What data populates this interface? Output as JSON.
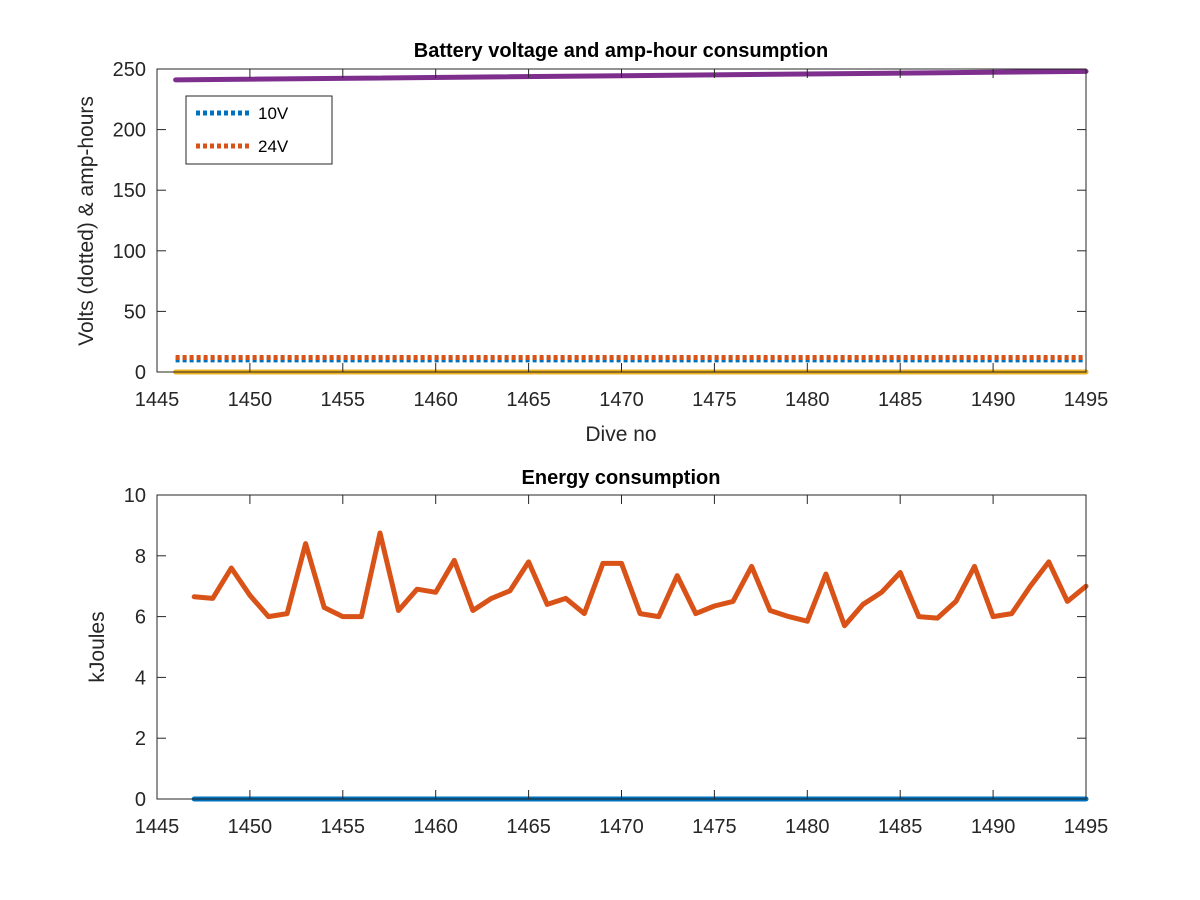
{
  "chart_data": [
    {
      "type": "line",
      "title": "Battery voltage and amp-hour consumption",
      "xlabel": "Dive no",
      "ylabel": "Volts (dotted) & amp-hours",
      "xlim": [
        1445,
        1495
      ],
      "ylim": [
        0,
        250
      ],
      "xticks": [
        1445,
        1450,
        1455,
        1460,
        1465,
        1470,
        1475,
        1480,
        1485,
        1490,
        1495
      ],
      "yticks": [
        0,
        50,
        100,
        150,
        200,
        250
      ],
      "grid": false,
      "legend": {
        "placement": "top-left",
        "entries": [
          "10V",
          "24V"
        ]
      },
      "series": [
        {
          "name": "10V",
          "style": "dotted",
          "color": "#0072BD",
          "x": [
            1446,
            1495
          ],
          "values": [
            10,
            10
          ]
        },
        {
          "name": "24V",
          "style": "dotted",
          "color": "#D95319",
          "x": [
            1446,
            1495
          ],
          "values": [
            12,
            12
          ]
        },
        {
          "style": "solid",
          "color": "#EDB120",
          "x": [
            1446,
            1495
          ],
          "values": [
            0,
            0
          ]
        },
        {
          "style": "solid",
          "color": "#7E2F8E",
          "x": [
            1446,
            1495
          ],
          "values": [
            241,
            248
          ]
        }
      ]
    },
    {
      "type": "line",
      "title": "Energy consumption",
      "xlabel": "",
      "ylabel": "kJoules",
      "xlim": [
        1445,
        1495
      ],
      "ylim": [
        0,
        10
      ],
      "xticks": [
        1445,
        1450,
        1455,
        1460,
        1465,
        1470,
        1475,
        1480,
        1485,
        1490,
        1495
      ],
      "yticks": [
        0,
        2,
        4,
        6,
        8,
        10
      ],
      "grid": false,
      "series": [
        {
          "style": "solid",
          "color": "#0072BD",
          "x": [
            1447,
            1495
          ],
          "values": [
            0,
            0
          ]
        },
        {
          "style": "solid",
          "color": "#D95319",
          "x": [
            1447,
            1448,
            1449,
            1450,
            1451,
            1452,
            1453,
            1454,
            1455,
            1456,
            1457,
            1458,
            1459,
            1460,
            1461,
            1462,
            1463,
            1464,
            1465,
            1466,
            1467,
            1468,
            1469,
            1470,
            1471,
            1472,
            1473,
            1474,
            1475,
            1476,
            1477,
            1478,
            1479,
            1480,
            1481,
            1482,
            1483,
            1484,
            1485,
            1486,
            1487,
            1488,
            1489,
            1490,
            1491,
            1492,
            1493,
            1494,
            1495
          ],
          "values": [
            6.65,
            6.6,
            7.6,
            6.7,
            6.0,
            6.1,
            8.4,
            6.3,
            6.0,
            6.0,
            8.75,
            6.2,
            6.9,
            6.8,
            7.85,
            6.2,
            6.6,
            6.85,
            7.8,
            6.4,
            6.6,
            6.1,
            7.75,
            7.75,
            6.1,
            6.0,
            7.35,
            6.1,
            6.35,
            6.5,
            7.65,
            6.2,
            6.0,
            5.85,
            7.4,
            5.7,
            6.4,
            6.8,
            7.45,
            6.0,
            5.95,
            6.5,
            7.65,
            6.0,
            6.1,
            7.0,
            7.8,
            6.5,
            7.0
          ]
        }
      ]
    }
  ]
}
